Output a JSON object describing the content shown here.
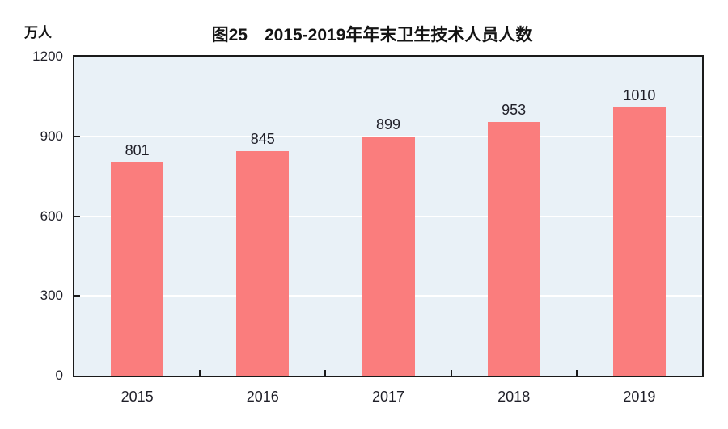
{
  "chart": {
    "title": "图25　2015-2019年年末卫生技术人员人数",
    "unit_label": "万人"
  },
  "chart_data": {
    "type": "bar",
    "title": "图25　2015-2019年年末卫生技术人员人数",
    "categories": [
      "2015",
      "2016",
      "2017",
      "2018",
      "2019"
    ],
    "values": [
      801,
      845,
      899,
      953,
      1010
    ],
    "value_labels": [
      "801",
      "845",
      "899",
      "953",
      "1010"
    ],
    "xlabel": "",
    "ylabel": "万人",
    "ylim": [
      0,
      1200
    ],
    "yticks": [
      0,
      300,
      600,
      900,
      1200
    ],
    "grid": true,
    "legend": false,
    "colors": {
      "bar": "#FA7D7D",
      "plot_background": "#E9F1F7",
      "gridline": "#FFFFFF",
      "axis": "#1A1A1A",
      "text": "#1F1F28"
    }
  }
}
